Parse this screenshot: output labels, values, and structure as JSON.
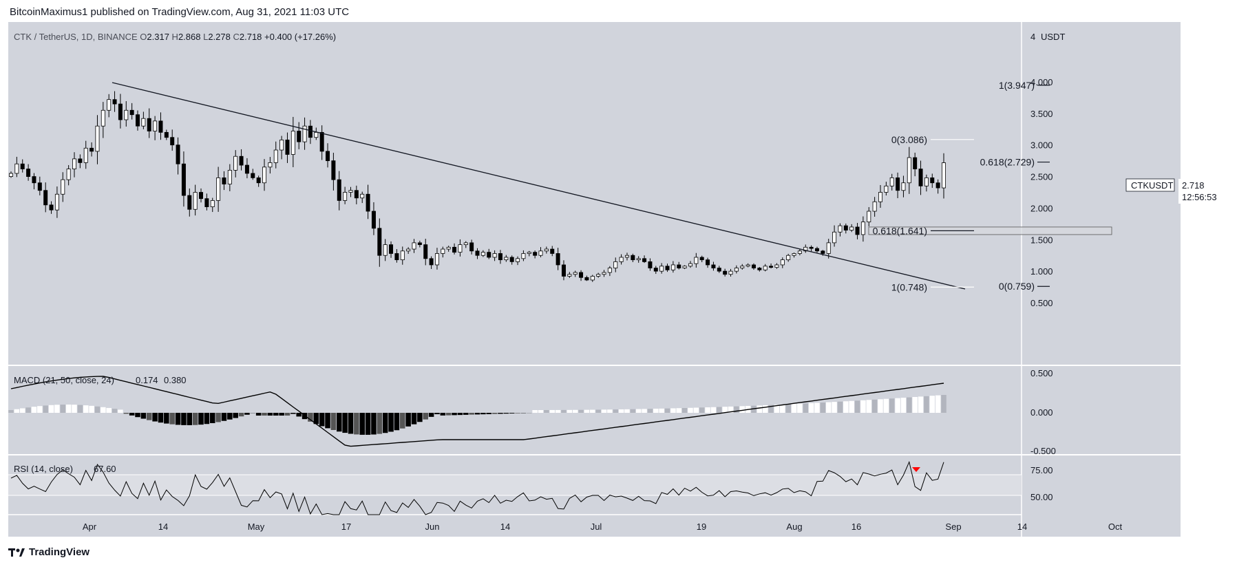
{
  "header": {
    "text": "BitcoinMaximus1 published on TradingView.com, Aug 31, 2021 11:03 UTC"
  },
  "symbol": {
    "title": "CTK / TetherUS, 1D, BINANCE",
    "open_key": "O",
    "open": "2.317",
    "high_key": "H",
    "high": "2.868",
    "low_key": "L",
    "low": "2.278",
    "close_key": "C",
    "close": "2.718",
    "change": "+0.400 (+17.26%)"
  },
  "price_tag": {
    "ticker": "CTKUSDT",
    "price": "2.718",
    "countdown": "12:56:53"
  },
  "price_axis": {
    "unit": "USDT",
    "ticks": [
      "4",
      "4.000",
      "3.500",
      "3.000",
      "2.500",
      "2.000",
      "1.500",
      "1.000",
      "0.500"
    ]
  },
  "macd_indicator": {
    "label": "MACD (21, 50, close, 24)",
    "value1": "0.174",
    "value2": "0.380",
    "ticks": [
      "0.500",
      "0.000",
      "-0.500"
    ]
  },
  "rsi_indicator": {
    "label": "RSI (14, close)",
    "value": "67.60",
    "ticks": [
      "75.00",
      "50.00"
    ]
  },
  "time_axis": {
    "labels": [
      "Apr",
      "14",
      "May",
      "17",
      "Jun",
      "14",
      "Jul",
      "19",
      "Aug",
      "16",
      "Sep",
      "14",
      "Oct"
    ]
  },
  "fib_levels": [
    {
      "label": "1(3.947)"
    },
    {
      "label": "0(3.086)"
    },
    {
      "label": "0.618(2.729)"
    },
    {
      "label": "0.618(1.641)"
    },
    {
      "label": "1(0.748)"
    },
    {
      "label": "0(0.759)"
    }
  ],
  "footer": {
    "brand": "TradingView"
  },
  "colors": {
    "pane_bg": "#d1d4dc",
    "rsi_band": "#dcdee4",
    "candle_up": "#ffffff",
    "candle_down": "#000000",
    "line": "#131722",
    "arrow": "#ff0000"
  },
  "chart_data": {
    "type": "candlestick",
    "title": "CTK / TetherUS, 1D, BINANCE",
    "price_range": [
      0.5,
      4.0
    ],
    "closes": [
      2.55,
      2.7,
      2.62,
      2.5,
      2.4,
      2.28,
      2.05,
      1.97,
      2.22,
      2.45,
      2.62,
      2.78,
      2.72,
      2.95,
      2.9,
      3.3,
      3.55,
      3.72,
      3.65,
      3.4,
      3.55,
      3.48,
      3.3,
      3.42,
      3.22,
      3.38,
      3.2,
      3.12,
      3.0,
      2.7,
      2.2,
      1.98,
      2.25,
      2.15,
      2.02,
      2.12,
      2.48,
      2.38,
      2.6,
      2.82,
      2.68,
      2.55,
      2.48,
      2.4,
      2.65,
      2.72,
      2.92,
      3.08,
      2.85,
      3.22,
      3.05,
      3.3,
      3.12,
      3.2,
      2.9,
      2.75,
      2.45,
      2.12,
      2.25,
      2.28,
      2.16,
      2.22,
      1.95,
      1.68,
      1.25,
      1.42,
      1.28,
      1.18,
      1.32,
      1.35,
      1.45,
      1.42,
      1.2,
      1.1,
      1.28,
      1.35,
      1.38,
      1.3,
      1.42,
      1.45,
      1.32,
      1.25,
      1.3,
      1.22,
      1.28,
      1.18,
      1.22,
      1.15,
      1.2,
      1.28,
      1.3,
      1.25,
      1.32,
      1.35,
      1.28,
      1.1,
      0.92,
      0.95,
      0.98,
      0.9,
      0.86,
      0.92,
      0.95,
      0.98,
      1.05,
      1.15,
      1.22,
      1.25,
      1.18,
      1.2,
      1.15,
      1.05,
      1.0,
      1.08,
      1.02,
      1.1,
      1.05,
      1.08,
      1.12,
      1.22,
      1.18,
      1.1,
      1.05,
      1.0,
      0.95,
      1.0,
      1.05,
      1.08,
      1.1,
      1.05,
      1.02,
      1.08,
      1.06,
      1.1,
      1.18,
      1.25,
      1.28,
      1.32,
      1.38,
      1.36,
      1.32,
      1.28,
      1.45,
      1.62,
      1.72,
      1.65,
      1.7,
      1.58,
      1.78,
      1.95,
      2.1,
      2.25,
      2.35,
      2.48,
      2.28,
      2.4,
      2.8,
      2.62,
      2.35,
      2.48,
      2.4,
      2.32,
      2.718
    ]
  }
}
